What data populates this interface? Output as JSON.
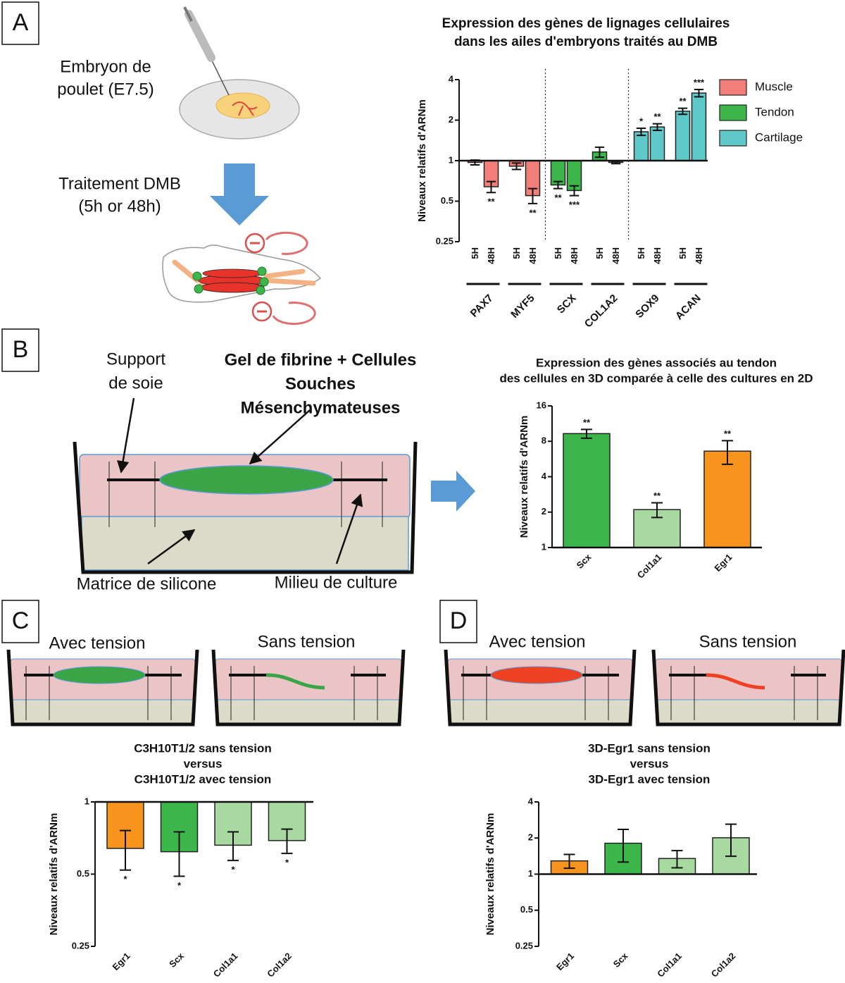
{
  "panel_labels": [
    "A",
    "B",
    "C",
    "D"
  ],
  "panel_a": {
    "embryo": [
      "Embryon de",
      "poulet (E7.5)"
    ],
    "treatment": [
      "Traitement DMB",
      "(5h or 48h)"
    ]
  },
  "panel_b": {
    "support": [
      "Support",
      "de soie"
    ],
    "gel": [
      "Gel de fibrine + Cellules",
      "Souches",
      "Mésenchymateuses"
    ],
    "matrix": "Matrice de silicone",
    "medium": "Milieu de culture"
  },
  "panel_c": {
    "with": "Avec tension",
    "without": "Sans tension"
  },
  "panel_d": {
    "with": "Avec tension",
    "without": "Sans tension"
  },
  "chart_data": [
    {
      "type": "bar",
      "title": [
        "Expression des gènes de lignages cellulaires",
        "dans les ailes d'embryons traités au DMB"
      ],
      "ylabel": "Niveaux relatifs d'ARNm",
      "ylog": true,
      "ylim": [
        0.25,
        4
      ],
      "yticks": [
        0.25,
        0.5,
        1,
        2,
        4
      ],
      "categories": [
        "5H",
        "48H",
        "5H",
        "48H",
        "5H",
        "48H",
        "5H",
        "48H",
        "5H",
        "48H",
        "5H",
        "48H"
      ],
      "groups": [
        "PAX7",
        "MYF5",
        "SCX",
        "COL1A2",
        "SOX9",
        "ACAN"
      ],
      "legend": "right",
      "series": [
        {
          "name": "Muscle",
          "color": "#f27f7a",
          "values": [
            0.97,
            0.64,
            0.91,
            0.55,
            null,
            null,
            null,
            null,
            null,
            null,
            null,
            null
          ],
          "errors": [
            0.04,
            0.06,
            0.05,
            0.07,
            null,
            null,
            null,
            null,
            null,
            null,
            null,
            null
          ],
          "significance": [
            null,
            "**",
            null,
            "**",
            null,
            null,
            null,
            null,
            null,
            null,
            null,
            null
          ]
        },
        {
          "name": "Tendon",
          "color": "#3cb54a",
          "values": [
            null,
            null,
            null,
            null,
            0.66,
            0.6,
            1.16,
            0.97,
            null,
            null,
            null,
            null
          ],
          "errors": [
            null,
            null,
            null,
            null,
            0.04,
            0.05,
            0.1,
            0.02,
            null,
            null,
            null,
            null
          ],
          "significance": [
            null,
            null,
            null,
            null,
            "**",
            "***",
            null,
            null,
            null,
            null,
            null,
            null
          ]
        },
        {
          "name": "Cartilage",
          "color": "#5fc9c9",
          "values": [
            null,
            null,
            null,
            null,
            null,
            null,
            null,
            null,
            1.64,
            1.78,
            2.33,
            3.18
          ],
          "errors": [
            null,
            null,
            null,
            null,
            null,
            null,
            null,
            null,
            0.1,
            0.1,
            0.12,
            0.2
          ],
          "significance": [
            null,
            null,
            null,
            null,
            null,
            null,
            null,
            null,
            "*",
            "**",
            "**",
            "***"
          ]
        }
      ]
    },
    {
      "type": "bar",
      "title": [
        "Expression des gènes associés au tendon",
        "des cellules en 3D comparée à celle des cultures en 2D"
      ],
      "ylabel": "Niveaux relatifs d'ARNm",
      "ylog": true,
      "ylim": [
        1,
        16
      ],
      "yticks": [
        1,
        2,
        4,
        8,
        16
      ],
      "categories": [
        "Scx",
        "Col1a1",
        "Egr1"
      ],
      "values": [
        9.3,
        2.1,
        6.6
      ],
      "errors": [
        0.8,
        0.3,
        1.5
      ],
      "colors": [
        "#3cb54a",
        "#a8d9a0",
        "#f7941d"
      ],
      "significance": [
        "**",
        "**",
        "**"
      ]
    },
    {
      "type": "bar",
      "title": [
        "C3H10T1/2 sans tension",
        "versus",
        "C3H10T1/2 avec tension"
      ],
      "ylabel": "Niveaux relatifs d'ARNm",
      "ylog": true,
      "ylim": [
        0.25,
        1
      ],
      "yticks": [
        0.25,
        0.5,
        1
      ],
      "categories": [
        "Egr1",
        "Scx",
        "Col1a1",
        "Col1a2"
      ],
      "values": [
        0.64,
        0.62,
        0.66,
        0.69
      ],
      "errors": [
        0.12,
        0.13,
        0.09,
        0.08
      ],
      "colors": [
        "#f7941d",
        "#3cb54a",
        "#a8d9a0",
        "#a8d9a0"
      ],
      "significance": [
        "*",
        "*",
        "*",
        "*"
      ]
    },
    {
      "type": "bar",
      "title": [
        "3D-Egr1 sans tension",
        "versus",
        "3D-Egr1 avec tension"
      ],
      "ylabel": "Niveaux relatifs d'ARNm",
      "ylog": true,
      "ylim": [
        0.25,
        4
      ],
      "yticks": [
        0.25,
        0.5,
        1,
        2,
        4
      ],
      "categories": [
        "Egr1",
        "Scx",
        "Col1a1",
        "Col1a2"
      ],
      "values": [
        1.29,
        1.81,
        1.35,
        2.01
      ],
      "errors": [
        0.17,
        0.55,
        0.22,
        0.6
      ],
      "colors": [
        "#f7941d",
        "#3cb54a",
        "#a8d9a0",
        "#a8d9a0"
      ]
    }
  ]
}
